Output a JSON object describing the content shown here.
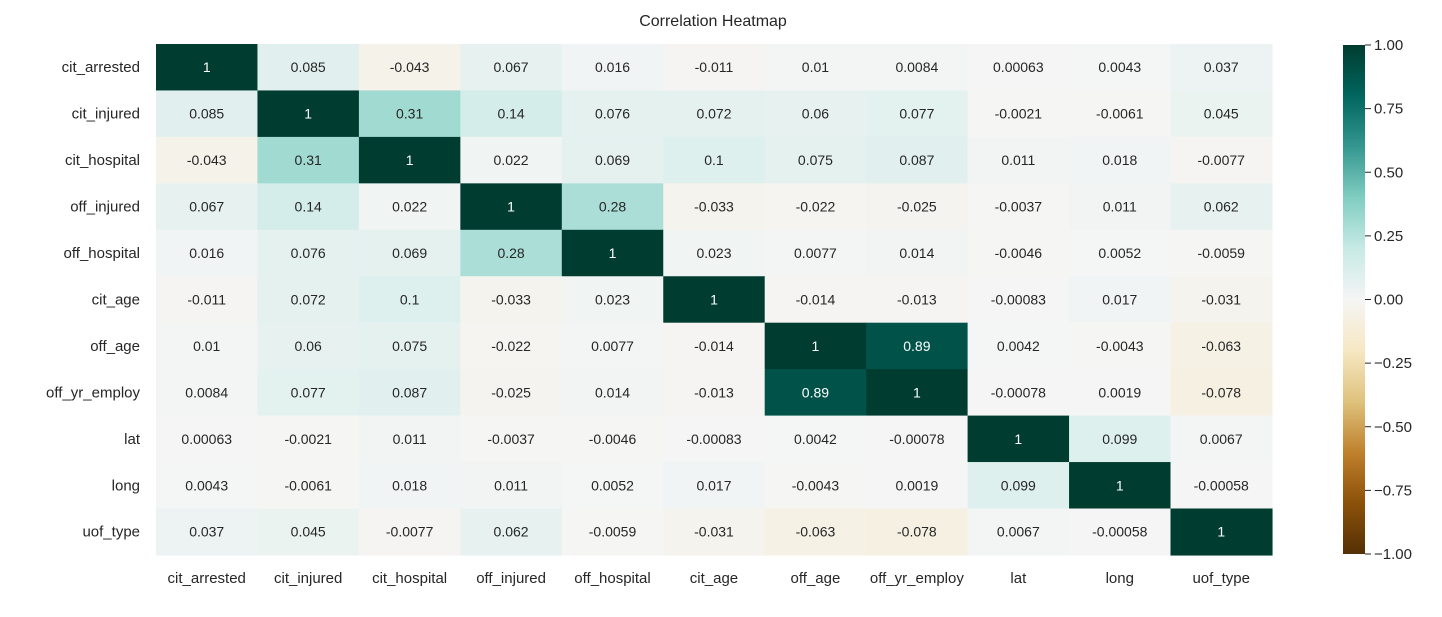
{
  "chart_data": {
    "type": "heatmap",
    "title": "Correlation Heatmap",
    "xlabel": "",
    "ylabel": "",
    "row_labels": [
      "cit_arrested",
      "cit_injured",
      "cit_hospital",
      "off_injured",
      "off_hospital",
      "cit_age",
      "off_age",
      "off_yr_employ",
      "lat",
      "long",
      "uof_type"
    ],
    "col_labels": [
      "cit_arrested",
      "cit_injured",
      "cit_hospital",
      "off_injured",
      "off_hospital",
      "cit_age",
      "off_age",
      "off_yr_employ",
      "lat",
      "long",
      "uof_type"
    ],
    "values": [
      [
        1,
        0.085,
        -0.043,
        0.067,
        0.016,
        -0.011,
        0.01,
        0.0084,
        0.00063,
        0.0043,
        0.037
      ],
      [
        0.085,
        1,
        0.31,
        0.14,
        0.076,
        0.072,
        0.06,
        0.077,
        -0.0021,
        -0.0061,
        0.045
      ],
      [
        -0.043,
        0.31,
        1,
        0.022,
        0.069,
        0.1,
        0.075,
        0.087,
        0.011,
        0.018,
        -0.0077
      ],
      [
        0.067,
        0.14,
        0.022,
        1,
        0.28,
        -0.033,
        -0.022,
        -0.025,
        -0.0037,
        0.011,
        0.062
      ],
      [
        0.016,
        0.076,
        0.069,
        0.28,
        1,
        0.023,
        0.0077,
        0.014,
        -0.0046,
        0.0052,
        -0.0059
      ],
      [
        -0.011,
        0.072,
        0.1,
        -0.033,
        0.023,
        1,
        -0.014,
        -0.013,
        -0.00083,
        0.017,
        -0.031
      ],
      [
        0.01,
        0.06,
        0.075,
        -0.022,
        0.0077,
        -0.014,
        1,
        0.89,
        0.0042,
        -0.0043,
        -0.063
      ],
      [
        0.0084,
        0.077,
        0.087,
        -0.025,
        0.014,
        -0.013,
        0.89,
        1,
        -0.00078,
        0.0019,
        -0.078
      ],
      [
        0.00063,
        -0.0021,
        0.011,
        -0.0037,
        -0.0046,
        -0.00083,
        0.0042,
        -0.00078,
        1,
        0.099,
        0.0067
      ],
      [
        0.0043,
        -0.0061,
        0.018,
        0.011,
        0.0052,
        0.017,
        -0.0043,
        0.0019,
        0.099,
        1,
        -0.00058
      ],
      [
        0.037,
        0.045,
        -0.0077,
        0.062,
        -0.0059,
        -0.031,
        -0.063,
        -0.078,
        0.0067,
        -0.00058,
        1
      ]
    ],
    "value_labels": [
      [
        "1",
        "0.085",
        "-0.043",
        "0.067",
        "0.016",
        "-0.011",
        "0.01",
        "0.0084",
        "0.00063",
        "0.0043",
        "0.037"
      ],
      [
        "0.085",
        "1",
        "0.31",
        "0.14",
        "0.076",
        "0.072",
        "0.06",
        "0.077",
        "-0.0021",
        "-0.0061",
        "0.045"
      ],
      [
        "-0.043",
        "0.31",
        "1",
        "0.022",
        "0.069",
        "0.1",
        "0.075",
        "0.087",
        "0.011",
        "0.018",
        "-0.0077"
      ],
      [
        "0.067",
        "0.14",
        "0.022",
        "1",
        "0.28",
        "-0.033",
        "-0.022",
        "-0.025",
        "-0.0037",
        "0.011",
        "0.062"
      ],
      [
        "0.016",
        "0.076",
        "0.069",
        "0.28",
        "1",
        "0.023",
        "0.0077",
        "0.014",
        "-0.0046",
        "0.0052",
        "-0.0059"
      ],
      [
        "-0.011",
        "0.072",
        "0.1",
        "-0.033",
        "0.023",
        "1",
        "-0.014",
        "-0.013",
        "-0.00083",
        "0.017",
        "-0.031"
      ],
      [
        "0.01",
        "0.06",
        "0.075",
        "-0.022",
        "0.0077",
        "-0.014",
        "1",
        "0.89",
        "0.0042",
        "-0.0043",
        "-0.063"
      ],
      [
        "0.0084",
        "0.077",
        "0.087",
        "-0.025",
        "0.014",
        "-0.013",
        "0.89",
        "1",
        "-0.00078",
        "0.0019",
        "-0.078"
      ],
      [
        "0.00063",
        "-0.0021",
        "0.011",
        "-0.0037",
        "-0.0046",
        "-0.00083",
        "0.0042",
        "-0.00078",
        "1",
        "0.099",
        "0.0067"
      ],
      [
        "0.0043",
        "-0.0061",
        "0.018",
        "0.011",
        "0.0052",
        "0.017",
        "-0.0043",
        "0.0019",
        "0.099",
        "1",
        "-0.00058"
      ],
      [
        "0.037",
        "0.045",
        "-0.0077",
        "0.062",
        "-0.0059",
        "-0.031",
        "-0.063",
        "-0.078",
        "0.0067",
        "-0.00058",
        "1"
      ]
    ],
    "colormap": "BrBG",
    "vmin": -1,
    "vmax": 1,
    "colorbar": {
      "ticks": [
        1,
        0.75,
        0.5,
        0.25,
        0,
        -0.25,
        -0.5,
        -0.75,
        -1
      ],
      "tick_labels": [
        "1.00",
        "0.75",
        "0.50",
        "0.25",
        "0.00",
        "−0.25",
        "−0.50",
        "−0.75",
        "−1.00"
      ],
      "placement": "right"
    },
    "grid": false,
    "colors": {
      "min": "#543005",
      "mid": "#f5f5f5",
      "max": "#003c30"
    }
  }
}
